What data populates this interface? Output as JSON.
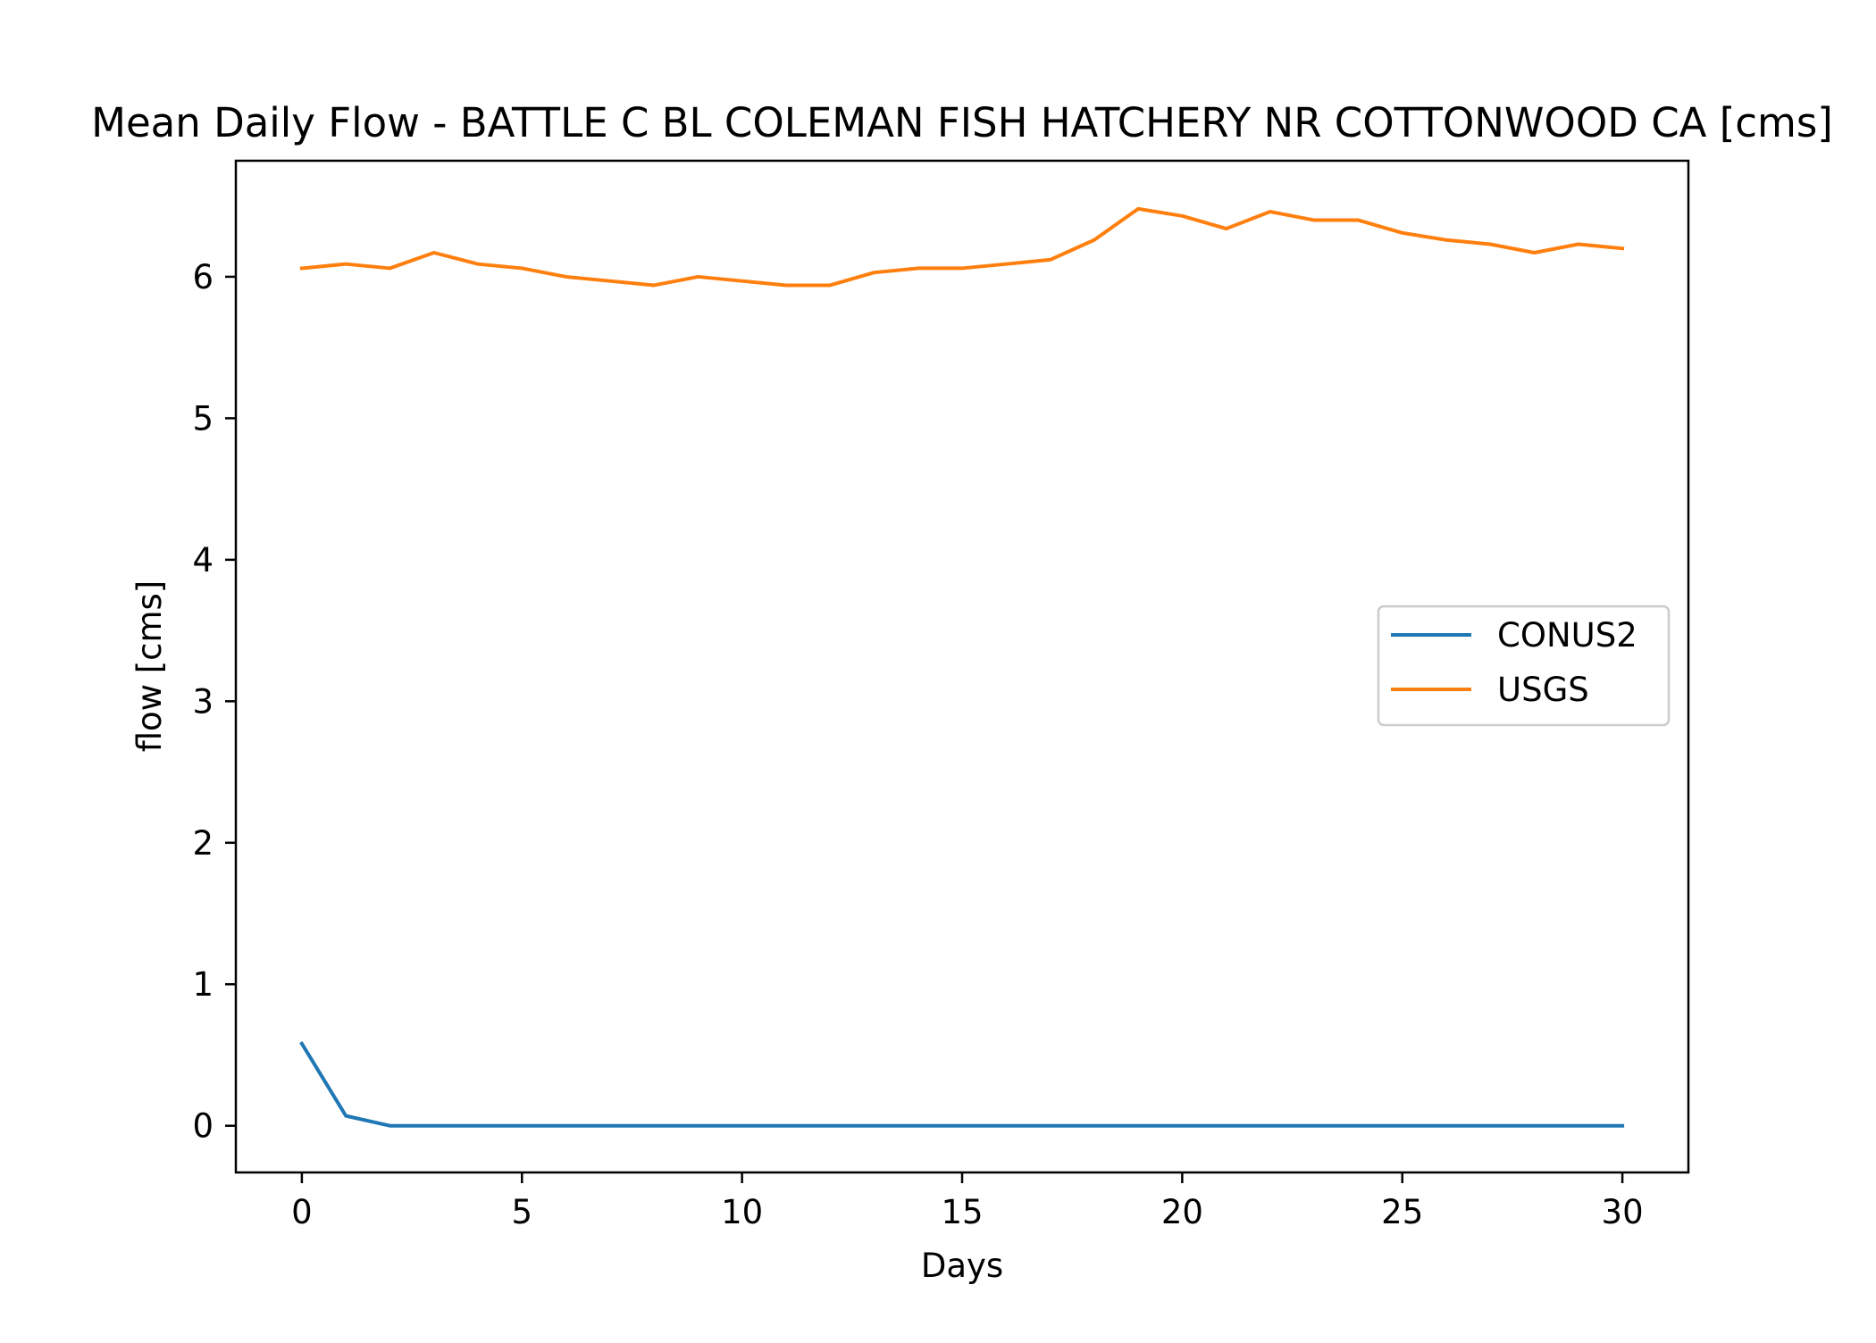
{
  "chart_data": {
    "type": "line",
    "title": "Mean Daily Flow - BATTLE C BL COLEMAN FISH HATCHERY NR COTTONWOOD CA [cms]",
    "xlabel": "Days",
    "ylabel": "flow [cms]",
    "xlim": [
      -1.5,
      31.5
    ],
    "ylim": [
      -0.33,
      6.82
    ],
    "xticks": [
      0,
      5,
      10,
      15,
      20,
      25,
      30
    ],
    "yticks": [
      0,
      1,
      2,
      3,
      4,
      5,
      6
    ],
    "grid": false,
    "legend_position": "center-right",
    "x": [
      0,
      1,
      2,
      3,
      4,
      5,
      6,
      7,
      8,
      9,
      10,
      11,
      12,
      13,
      14,
      15,
      16,
      17,
      18,
      19,
      20,
      21,
      22,
      23,
      24,
      25,
      26,
      27,
      28,
      29,
      30
    ],
    "series": [
      {
        "name": "CONUS2",
        "color": "#1f77b4",
        "values": [
          0.58,
          0.07,
          0.0,
          0.0,
          0.0,
          0.0,
          0.0,
          0.0,
          0.0,
          0.0,
          0.0,
          0.0,
          0.0,
          0.0,
          0.0,
          0.0,
          0.0,
          0.0,
          0.0,
          0.0,
          0.0,
          0.0,
          0.0,
          0.0,
          0.0,
          0.0,
          0.0,
          0.0,
          0.0,
          0.0,
          0.0
        ]
      },
      {
        "name": "USGS",
        "color": "#ff7f0e",
        "values": [
          6.06,
          6.09,
          6.06,
          6.17,
          6.09,
          6.06,
          6.0,
          5.97,
          5.94,
          6.0,
          5.97,
          5.94,
          5.94,
          6.03,
          6.06,
          6.06,
          6.09,
          6.12,
          6.26,
          6.48,
          6.43,
          6.34,
          6.46,
          6.4,
          6.4,
          6.31,
          6.26,
          6.23,
          6.17,
          6.23,
          6.2
        ]
      }
    ]
  }
}
